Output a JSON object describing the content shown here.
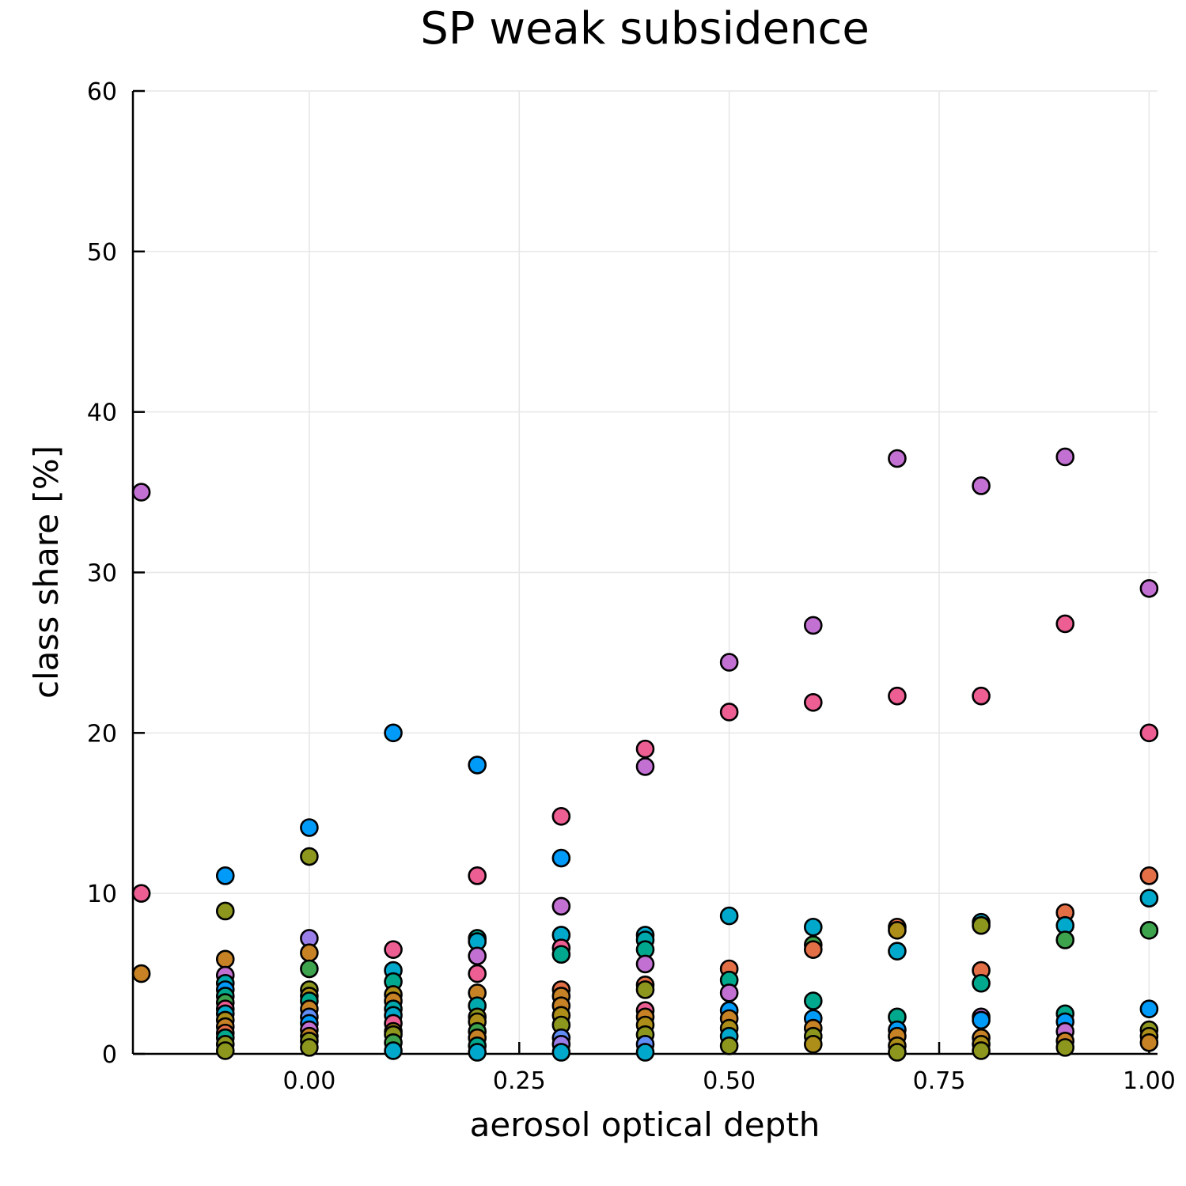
{
  "chart_data": {
    "type": "scatter",
    "title": "SP weak subsidence",
    "xlabel": "aerosol optical depth",
    "ylabel": "class share [%]",
    "xlim": [
      -0.21,
      1.01
    ],
    "ylim": [
      0,
      60
    ],
    "xticks": [
      0.0,
      0.25,
      0.5,
      0.75,
      1.0
    ],
    "xtick_labels": [
      "0.00",
      "0.25",
      "0.50",
      "0.75",
      "1.00"
    ],
    "yticks": [
      0,
      10,
      20,
      30,
      40,
      50,
      60
    ],
    "ytick_labels": [
      "0",
      "10",
      "20",
      "30",
      "40",
      "50",
      "60"
    ],
    "grid": true,
    "legend": "none",
    "colors": [
      "#009af9",
      "#e26f46",
      "#3da44d",
      "#c271d2",
      "#ac8e18",
      "#00a9ad",
      "#ed5e93",
      "#c68225",
      "#00a98d",
      "#8e971d",
      "#00a8cb",
      "#9b7fe9",
      "#618df6"
    ],
    "points": [
      {
        "x": -0.2,
        "y": 35.0,
        "c": 3
      },
      {
        "x": -0.2,
        "y": 10.0,
        "c": 6
      },
      {
        "x": -0.2,
        "y": 5.0,
        "c": 7
      },
      {
        "x": -0.1,
        "y": 11.1,
        "c": 0
      },
      {
        "x": -0.1,
        "y": 8.9,
        "c": 9
      },
      {
        "x": -0.1,
        "y": 5.9,
        "c": 7
      },
      {
        "x": -0.1,
        "y": 4.9,
        "c": 3
      },
      {
        "x": -0.1,
        "y": 4.4,
        "c": 5
      },
      {
        "x": -0.1,
        "y": 4.0,
        "c": 0
      },
      {
        "x": -0.1,
        "y": 3.6,
        "c": 8
      },
      {
        "x": -0.1,
        "y": 3.2,
        "c": 2
      },
      {
        "x": -0.1,
        "y": 2.8,
        "c": 6
      },
      {
        "x": -0.1,
        "y": 2.5,
        "c": 10
      },
      {
        "x": -0.1,
        "y": 2.1,
        "c": 4
      },
      {
        "x": -0.1,
        "y": 1.7,
        "c": 7
      },
      {
        "x": -0.1,
        "y": 1.3,
        "c": 1
      },
      {
        "x": -0.1,
        "y": 1.0,
        "c": 8
      },
      {
        "x": -0.1,
        "y": 0.6,
        "c": 9
      },
      {
        "x": -0.1,
        "y": 0.2,
        "c": 9
      },
      {
        "x": 0.0,
        "y": 14.1,
        "c": 0
      },
      {
        "x": 0.0,
        "y": 12.3,
        "c": 9
      },
      {
        "x": 0.0,
        "y": 7.2,
        "c": 11
      },
      {
        "x": 0.0,
        "y": 6.3,
        "c": 7
      },
      {
        "x": 0.0,
        "y": 5.3,
        "c": 2
      },
      {
        "x": 0.0,
        "y": 4.0,
        "c": 9
      },
      {
        "x": 0.0,
        "y": 3.6,
        "c": 4
      },
      {
        "x": 0.0,
        "y": 3.3,
        "c": 8
      },
      {
        "x": 0.0,
        "y": 2.8,
        "c": 7
      },
      {
        "x": 0.0,
        "y": 2.3,
        "c": 12
      },
      {
        "x": 0.0,
        "y": 1.9,
        "c": 0
      },
      {
        "x": 0.0,
        "y": 1.5,
        "c": 3
      },
      {
        "x": 0.0,
        "y": 1.1,
        "c": 7
      },
      {
        "x": 0.0,
        "y": 0.8,
        "c": 9
      },
      {
        "x": 0.0,
        "y": 0.4,
        "c": 9
      },
      {
        "x": 0.1,
        "y": 20.0,
        "c": 0
      },
      {
        "x": 0.1,
        "y": 6.5,
        "c": 6
      },
      {
        "x": 0.1,
        "y": 5.2,
        "c": 10
      },
      {
        "x": 0.1,
        "y": 4.5,
        "c": 8
      },
      {
        "x": 0.1,
        "y": 3.7,
        "c": 4
      },
      {
        "x": 0.1,
        "y": 3.3,
        "c": 7
      },
      {
        "x": 0.1,
        "y": 2.8,
        "c": 5
      },
      {
        "x": 0.1,
        "y": 2.4,
        "c": 10
      },
      {
        "x": 0.1,
        "y": 1.9,
        "c": 6
      },
      {
        "x": 0.1,
        "y": 1.4,
        "c": 4
      },
      {
        "x": 0.1,
        "y": 1.2,
        "c": 9
      },
      {
        "x": 0.1,
        "y": 0.7,
        "c": 2
      },
      {
        "x": 0.1,
        "y": 0.2,
        "c": 10
      },
      {
        "x": 0.2,
        "y": 18.0,
        "c": 0
      },
      {
        "x": 0.2,
        "y": 11.1,
        "c": 6
      },
      {
        "x": 0.2,
        "y": 7.2,
        "c": 8
      },
      {
        "x": 0.2,
        "y": 7.0,
        "c": 10
      },
      {
        "x": 0.2,
        "y": 6.1,
        "c": 3
      },
      {
        "x": 0.2,
        "y": 5.0,
        "c": 6
      },
      {
        "x": 0.2,
        "y": 3.8,
        "c": 7
      },
      {
        "x": 0.2,
        "y": 3.0,
        "c": 5
      },
      {
        "x": 0.2,
        "y": 2.3,
        "c": 9
      },
      {
        "x": 0.2,
        "y": 2.0,
        "c": 4
      },
      {
        "x": 0.2,
        "y": 1.4,
        "c": 2
      },
      {
        "x": 0.2,
        "y": 1.0,
        "c": 7
      },
      {
        "x": 0.2,
        "y": 0.5,
        "c": 8
      },
      {
        "x": 0.2,
        "y": 0.1,
        "c": 10
      },
      {
        "x": 0.3,
        "y": 14.8,
        "c": 6
      },
      {
        "x": 0.3,
        "y": 12.2,
        "c": 0
      },
      {
        "x": 0.3,
        "y": 9.2,
        "c": 3
      },
      {
        "x": 0.3,
        "y": 7.4,
        "c": 10
      },
      {
        "x": 0.3,
        "y": 6.6,
        "c": 6
      },
      {
        "x": 0.3,
        "y": 6.2,
        "c": 8
      },
      {
        "x": 0.3,
        "y": 4.0,
        "c": 1
      },
      {
        "x": 0.3,
        "y": 3.6,
        "c": 7
      },
      {
        "x": 0.3,
        "y": 3.0,
        "c": 7
      },
      {
        "x": 0.3,
        "y": 2.4,
        "c": 4
      },
      {
        "x": 0.3,
        "y": 1.8,
        "c": 9
      },
      {
        "x": 0.3,
        "y": 1.0,
        "c": 12
      },
      {
        "x": 0.3,
        "y": 0.6,
        "c": 11
      },
      {
        "x": 0.3,
        "y": 0.1,
        "c": 10
      },
      {
        "x": 0.4,
        "y": 19.0,
        "c": 6
      },
      {
        "x": 0.4,
        "y": 17.9,
        "c": 3
      },
      {
        "x": 0.4,
        "y": 7.4,
        "c": 10
      },
      {
        "x": 0.4,
        "y": 7.1,
        "c": 5
      },
      {
        "x": 0.4,
        "y": 6.5,
        "c": 8
      },
      {
        "x": 0.4,
        "y": 5.6,
        "c": 3
      },
      {
        "x": 0.4,
        "y": 4.3,
        "c": 1
      },
      {
        "x": 0.4,
        "y": 4.0,
        "c": 9
      },
      {
        "x": 0.4,
        "y": 2.7,
        "c": 6
      },
      {
        "x": 0.4,
        "y": 2.3,
        "c": 7
      },
      {
        "x": 0.4,
        "y": 1.8,
        "c": 4
      },
      {
        "x": 0.4,
        "y": 1.2,
        "c": 9
      },
      {
        "x": 0.4,
        "y": 0.6,
        "c": 12
      },
      {
        "x": 0.4,
        "y": 0.1,
        "c": 10
      },
      {
        "x": 0.5,
        "y": 24.4,
        "c": 3
      },
      {
        "x": 0.5,
        "y": 21.3,
        "c": 6
      },
      {
        "x": 0.5,
        "y": 8.6,
        "c": 10
      },
      {
        "x": 0.5,
        "y": 5.3,
        "c": 1
      },
      {
        "x": 0.5,
        "y": 4.6,
        "c": 8
      },
      {
        "x": 0.5,
        "y": 3.8,
        "c": 3
      },
      {
        "x": 0.5,
        "y": 2.7,
        "c": 0
      },
      {
        "x": 0.5,
        "y": 2.2,
        "c": 7
      },
      {
        "x": 0.5,
        "y": 1.6,
        "c": 4
      },
      {
        "x": 0.5,
        "y": 1.1,
        "c": 10
      },
      {
        "x": 0.5,
        "y": 0.5,
        "c": 9
      },
      {
        "x": 0.6,
        "y": 26.7,
        "c": 3
      },
      {
        "x": 0.6,
        "y": 21.9,
        "c": 6
      },
      {
        "x": 0.6,
        "y": 7.9,
        "c": 10
      },
      {
        "x": 0.6,
        "y": 6.8,
        "c": 2
      },
      {
        "x": 0.6,
        "y": 6.5,
        "c": 1
      },
      {
        "x": 0.6,
        "y": 3.3,
        "c": 8
      },
      {
        "x": 0.6,
        "y": 2.2,
        "c": 0
      },
      {
        "x": 0.6,
        "y": 1.6,
        "c": 7
      },
      {
        "x": 0.6,
        "y": 1.1,
        "c": 9
      },
      {
        "x": 0.6,
        "y": 0.6,
        "c": 4
      },
      {
        "x": 0.7,
        "y": 37.1,
        "c": 3
      },
      {
        "x": 0.7,
        "y": 22.3,
        "c": 6
      },
      {
        "x": 0.7,
        "y": 7.9,
        "c": 1
      },
      {
        "x": 0.7,
        "y": 7.7,
        "c": 4
      },
      {
        "x": 0.7,
        "y": 6.4,
        "c": 10
      },
      {
        "x": 0.7,
        "y": 2.3,
        "c": 8
      },
      {
        "x": 0.7,
        "y": 1.5,
        "c": 0
      },
      {
        "x": 0.7,
        "y": 1.1,
        "c": 7
      },
      {
        "x": 0.7,
        "y": 0.5,
        "c": 4
      },
      {
        "x": 0.7,
        "y": 0.1,
        "c": 9
      },
      {
        "x": 0.8,
        "y": 35.4,
        "c": 3
      },
      {
        "x": 0.8,
        "y": 22.3,
        "c": 6
      },
      {
        "x": 0.8,
        "y": 8.2,
        "c": 10
      },
      {
        "x": 0.8,
        "y": 8.0,
        "c": 9
      },
      {
        "x": 0.8,
        "y": 5.2,
        "c": 1
      },
      {
        "x": 0.8,
        "y": 4.4,
        "c": 8
      },
      {
        "x": 0.8,
        "y": 2.3,
        "c": 3
      },
      {
        "x": 0.8,
        "y": 2.1,
        "c": 0
      },
      {
        "x": 0.8,
        "y": 1.0,
        "c": 7
      },
      {
        "x": 0.8,
        "y": 0.6,
        "c": 4
      },
      {
        "x": 0.8,
        "y": 0.2,
        "c": 9
      },
      {
        "x": 0.9,
        "y": 37.2,
        "c": 3
      },
      {
        "x": 0.9,
        "y": 26.8,
        "c": 6
      },
      {
        "x": 0.9,
        "y": 8.8,
        "c": 1
      },
      {
        "x": 0.9,
        "y": 8.0,
        "c": 10
      },
      {
        "x": 0.9,
        "y": 7.1,
        "c": 2
      },
      {
        "x": 0.9,
        "y": 2.5,
        "c": 8
      },
      {
        "x": 0.9,
        "y": 2.0,
        "c": 0
      },
      {
        "x": 0.9,
        "y": 1.4,
        "c": 3
      },
      {
        "x": 0.9,
        "y": 0.8,
        "c": 7
      },
      {
        "x": 0.9,
        "y": 0.4,
        "c": 9
      },
      {
        "x": 1.0,
        "y": 29.0,
        "c": 3
      },
      {
        "x": 1.0,
        "y": 20.0,
        "c": 6
      },
      {
        "x": 1.0,
        "y": 11.1,
        "c": 1
      },
      {
        "x": 1.0,
        "y": 9.7,
        "c": 10
      },
      {
        "x": 1.0,
        "y": 7.7,
        "c": 2
      },
      {
        "x": 1.0,
        "y": 2.8,
        "c": 0
      },
      {
        "x": 1.0,
        "y": 1.5,
        "c": 9
      },
      {
        "x": 1.0,
        "y": 1.1,
        "c": 4
      },
      {
        "x": 1.0,
        "y": 0.7,
        "c": 7
      }
    ]
  }
}
